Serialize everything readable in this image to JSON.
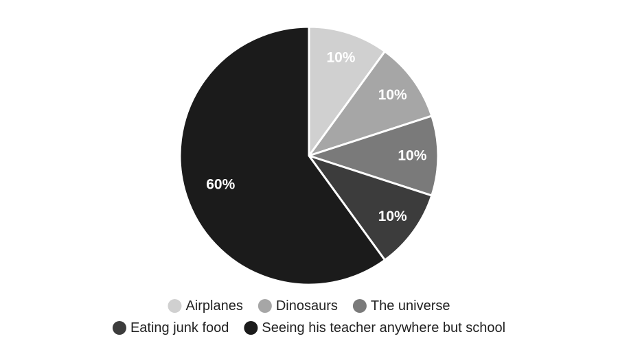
{
  "chart_data": {
    "type": "pie",
    "categories": [
      "Airplanes",
      "Dinosaurs",
      "The universe",
      "Eating junk food",
      "Seeing his teacher anywhere but school"
    ],
    "values": [
      10,
      10,
      10,
      10,
      60
    ],
    "value_labels": [
      "10%",
      "10%",
      "10%",
      "10%",
      "60%"
    ],
    "colors": [
      "#d0d0d0",
      "#a6a6a6",
      "#7a7a7a",
      "#3c3c3c",
      "#1b1b1b"
    ],
    "start_angle_deg": 0,
    "direction": "clockwise",
    "legend": "bottom",
    "title": ""
  }
}
